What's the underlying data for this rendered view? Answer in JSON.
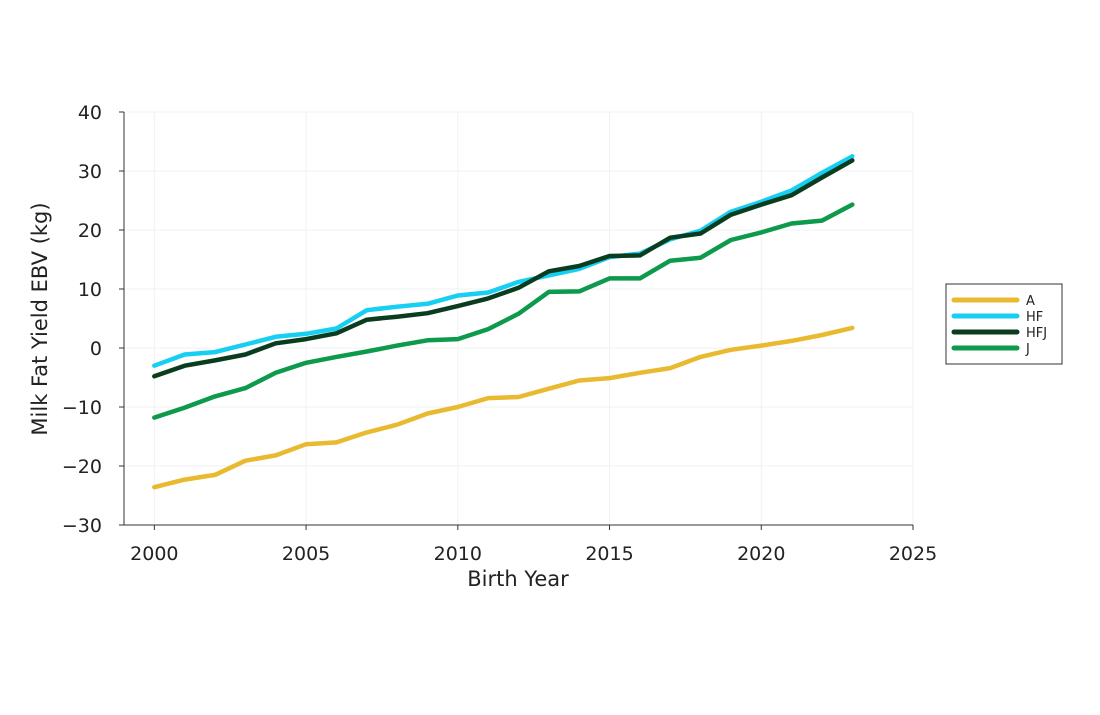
{
  "chart_data": {
    "type": "line",
    "title": "",
    "xlabel": "Birth Year",
    "ylabel": "Milk Fat Yield EBV (kg)",
    "xlim": [
      1999,
      2025
    ],
    "ylim": [
      -30,
      40
    ],
    "xticks": [
      2000,
      2005,
      2010,
      2015,
      2020,
      2025
    ],
    "yticks": [
      -30,
      -20,
      -10,
      0,
      10,
      20,
      30,
      40
    ],
    "grid": true,
    "legend_position": "right",
    "x": [
      2000,
      2001,
      2002,
      2003,
      2004,
      2005,
      2006,
      2007,
      2008,
      2009,
      2010,
      2011,
      2012,
      2013,
      2014,
      2015,
      2016,
      2017,
      2018,
      2019,
      2020,
      2021,
      2022,
      2023
    ],
    "series": [
      {
        "name": "A",
        "color": "#e9b92f",
        "values": [
          -23.6,
          -22.3,
          -21.5,
          -19.1,
          -18.2,
          -16.3,
          -16.0,
          -14.3,
          -13.0,
          -11.1,
          -10.0,
          -8.5,
          -8.3,
          -6.9,
          -5.5,
          -5.1,
          -4.2,
          -3.4,
          -1.5,
          -0.3,
          0.4,
          1.2,
          2.2,
          3.4
        ]
      },
      {
        "name": "HF",
        "color": "#16cff2",
        "values": [
          -3.0,
          -1.1,
          -0.7,
          0.6,
          1.9,
          2.4,
          3.3,
          6.4,
          7.0,
          7.5,
          8.9,
          9.4,
          11.2,
          12.3,
          13.4,
          15.4,
          16.0,
          18.4,
          19.9,
          23.1,
          24.8,
          26.7,
          29.7,
          32.5
        ]
      },
      {
        "name": "HFJ",
        "color": "#0a3d1f",
        "values": [
          -4.8,
          -3.0,
          -2.1,
          -1.1,
          0.8,
          1.5,
          2.5,
          4.8,
          5.3,
          5.9,
          7.1,
          8.4,
          10.2,
          13.0,
          13.9,
          15.6,
          15.7,
          18.7,
          19.4,
          22.6,
          24.3,
          25.9,
          28.9,
          31.8
        ]
      },
      {
        "name": "J",
        "color": "#0d9a4c",
        "values": [
          -11.8,
          -10.1,
          -8.2,
          -6.8,
          -4.2,
          -2.5,
          -1.5,
          -0.6,
          0.4,
          1.3,
          1.5,
          3.2,
          5.8,
          9.5,
          9.6,
          11.8,
          11.8,
          14.8,
          15.3,
          18.3,
          19.6,
          21.1,
          21.6,
          24.3
        ]
      }
    ]
  }
}
